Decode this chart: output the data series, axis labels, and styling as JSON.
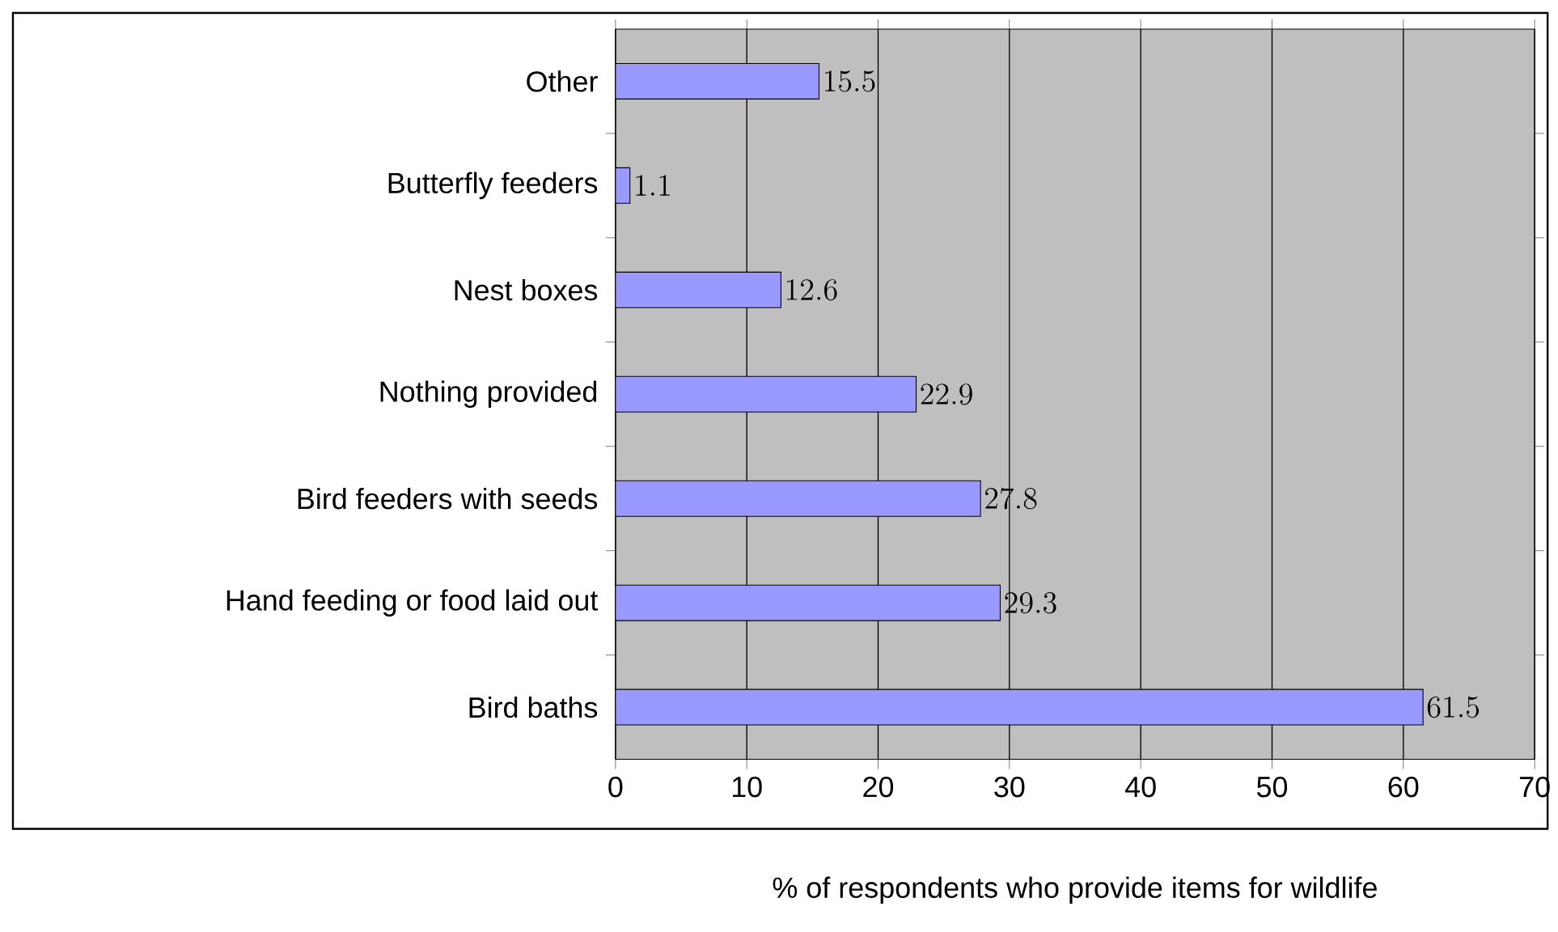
{
  "chart_data": {
    "type": "bar",
    "orientation": "horizontal",
    "xlabel": "% of respondents who provide items for wildlife",
    "categories": [
      "Other",
      "Butterfly feeders",
      "Nest boxes",
      "Nothing provided",
      "Bird feeders with seeds",
      "Hand feeding or food laid out",
      "Bird baths"
    ],
    "values": [
      15.5,
      1.1,
      12.6,
      22.9,
      27.8,
      29.3,
      61.5
    ],
    "color": "#9999ff",
    "xlim": [
      0,
      70
    ],
    "xticks": [
      0,
      10,
      20,
      30,
      40,
      50,
      60,
      70
    ],
    "grid": "x",
    "data_labels": true
  }
}
